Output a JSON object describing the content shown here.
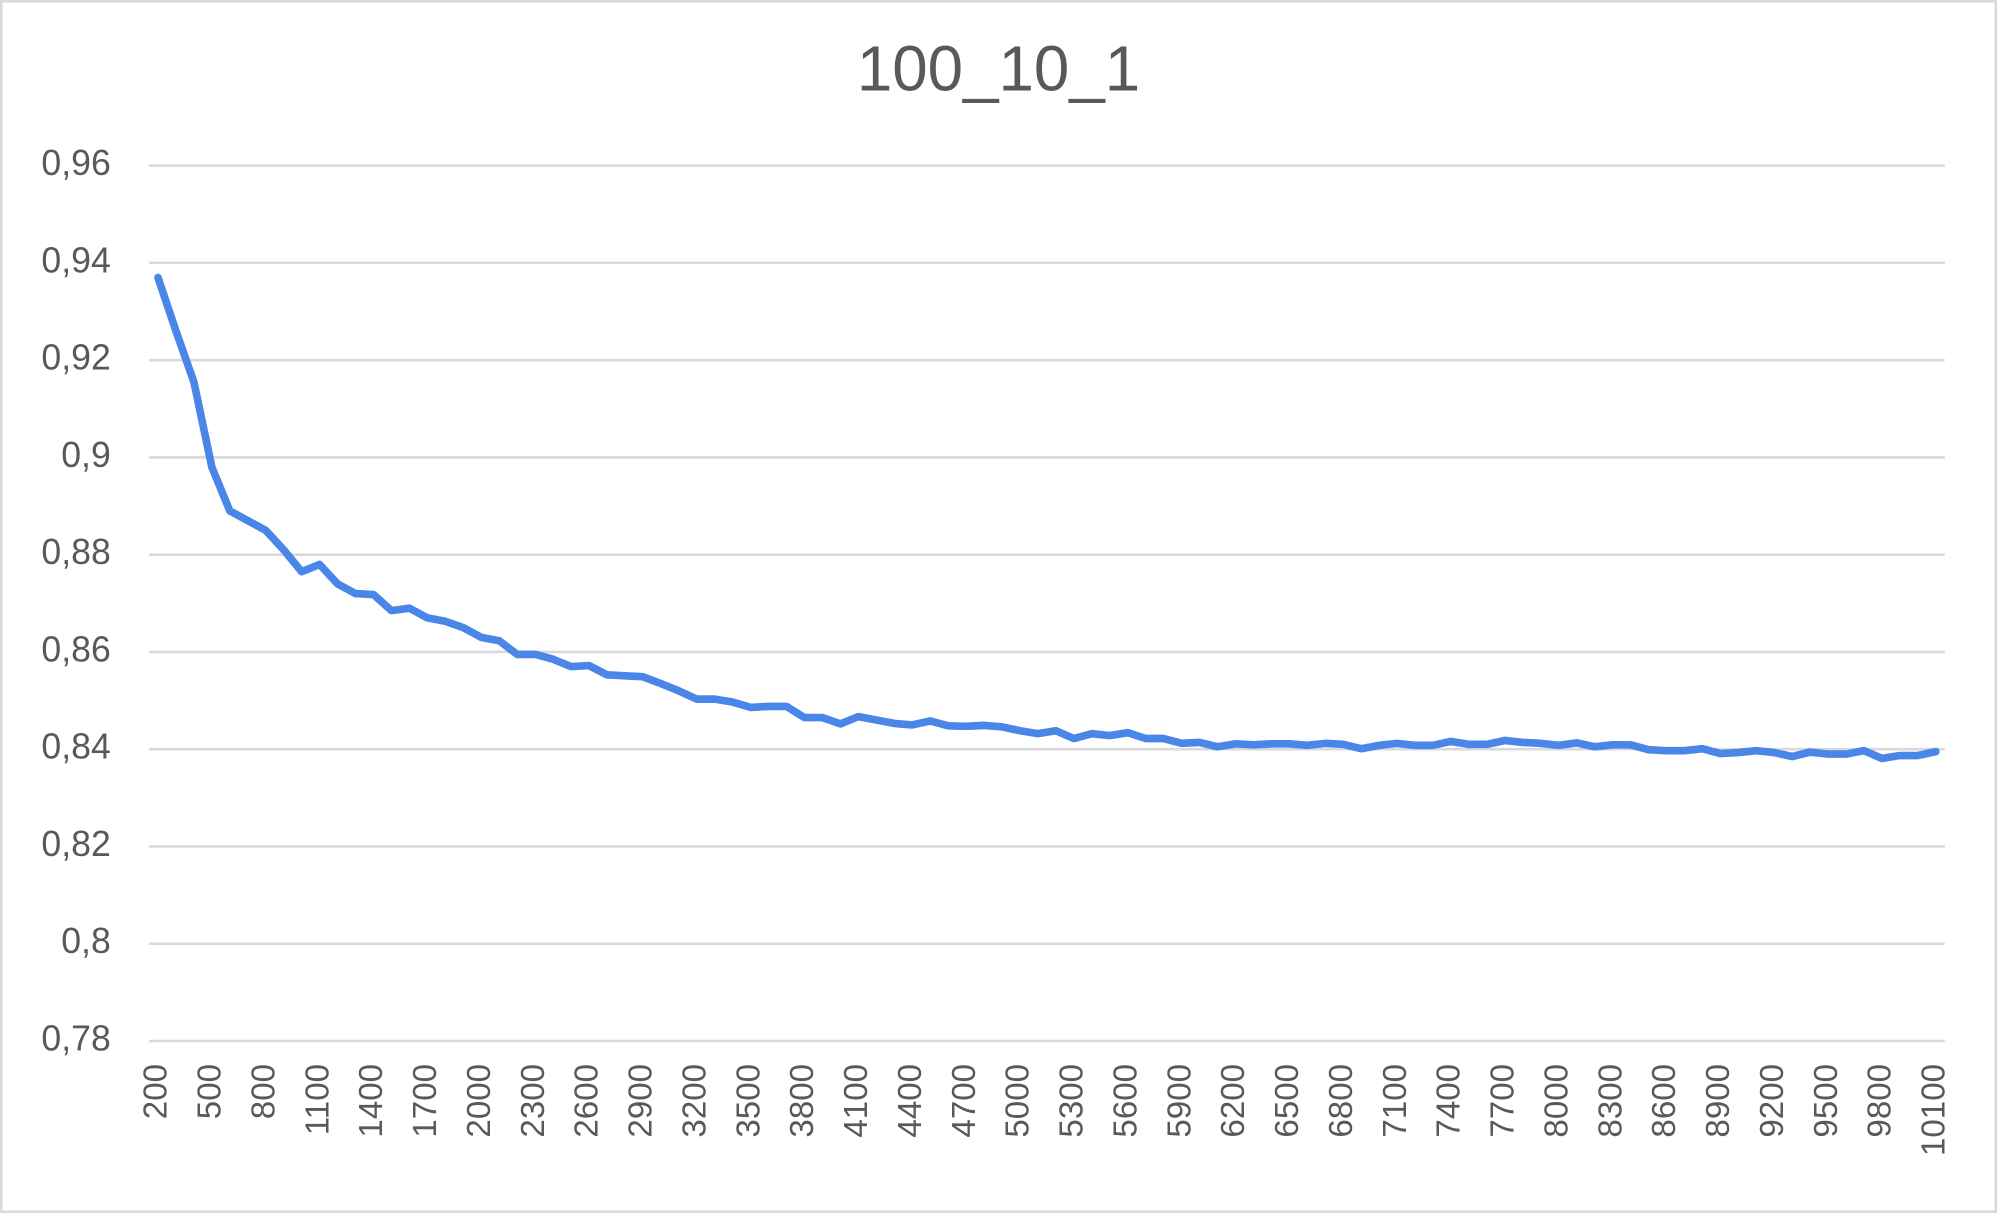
{
  "chart_data": {
    "type": "line",
    "title": "100_10_1",
    "categories": [
      "200",
      null,
      null,
      "500",
      null,
      null,
      "800",
      null,
      null,
      "1100",
      null,
      null,
      "1400",
      null,
      null,
      "1700",
      null,
      null,
      "2000",
      null,
      null,
      "2300",
      null,
      null,
      "2600",
      null,
      null,
      "2900",
      null,
      null,
      "3200",
      null,
      null,
      "3500",
      null,
      null,
      "3800",
      null,
      null,
      "4100",
      null,
      null,
      "4400",
      null,
      null,
      "4700",
      null,
      null,
      "5000",
      null,
      null,
      "5300",
      null,
      null,
      "5600",
      null,
      null,
      "5900",
      null,
      null,
      "6200",
      null,
      null,
      "6500",
      null,
      null,
      "6800",
      null,
      null,
      "7100",
      null,
      null,
      "7400",
      null,
      null,
      "7700",
      null,
      null,
      "8000",
      null,
      null,
      "8300",
      null,
      null,
      "8600",
      null,
      null,
      "8900",
      null,
      null,
      "9200",
      null,
      null,
      "9500",
      null,
      null,
      "9800",
      null,
      null,
      "10100"
    ],
    "values": [
      0.937,
      0.926,
      0.9155,
      0.898,
      0.889,
      0.887,
      0.885,
      0.881,
      0.8765,
      0.878,
      0.874,
      0.872,
      0.8718,
      0.8685,
      0.869,
      0.867,
      0.8663,
      0.865,
      0.863,
      0.8623,
      0.8595,
      0.8595,
      0.8585,
      0.857,
      0.8572,
      0.8553,
      0.8551,
      0.8549,
      0.8535,
      0.852,
      0.8503,
      0.8503,
      0.8497,
      0.8486,
      0.8488,
      0.8488,
      0.8465,
      0.8465,
      0.8452,
      0.8467,
      0.846,
      0.8453,
      0.845,
      0.8458,
      0.8448,
      0.8447,
      0.8449,
      0.8446,
      0.8438,
      0.8432,
      0.8438,
      0.8422,
      0.8432,
      0.8428,
      0.8434,
      0.8422,
      0.8422,
      0.8412,
      0.8414,
      0.8405,
      0.8411,
      0.8409,
      0.8411,
      0.8411,
      0.8408,
      0.8412,
      0.841,
      0.8401,
      0.8408,
      0.8412,
      0.8408,
      0.8408,
      0.8416,
      0.841,
      0.841,
      0.8418,
      0.8414,
      0.8412,
      0.8408,
      0.8413,
      0.8405,
      0.8409,
      0.8409,
      0.8399,
      0.8397,
      0.8397,
      0.8401,
      0.8391,
      0.8393,
      0.8397,
      0.8393,
      0.8385,
      0.8394,
      0.839,
      0.839,
      0.8397,
      0.8381,
      0.8387,
      0.8387,
      0.8395
    ],
    "color": "#4a86e8",
    "ylim": [
      0.78,
      0.96
    ],
    "yticks": [
      {
        "value": 0.78,
        "label": "0,78"
      },
      {
        "value": 0.8,
        "label": "0,8"
      },
      {
        "value": 0.82,
        "label": "0,82"
      },
      {
        "value": 0.84,
        "label": "0,84"
      },
      {
        "value": 0.86,
        "label": "0,86"
      },
      {
        "value": 0.88,
        "label": "0,88"
      },
      {
        "value": 0.9,
        "label": "0,9"
      },
      {
        "value": 0.92,
        "label": "0,92"
      },
      {
        "value": 0.94,
        "label": "0,94"
      },
      {
        "value": 0.96,
        "label": "0,96"
      }
    ],
    "grid": true
  }
}
